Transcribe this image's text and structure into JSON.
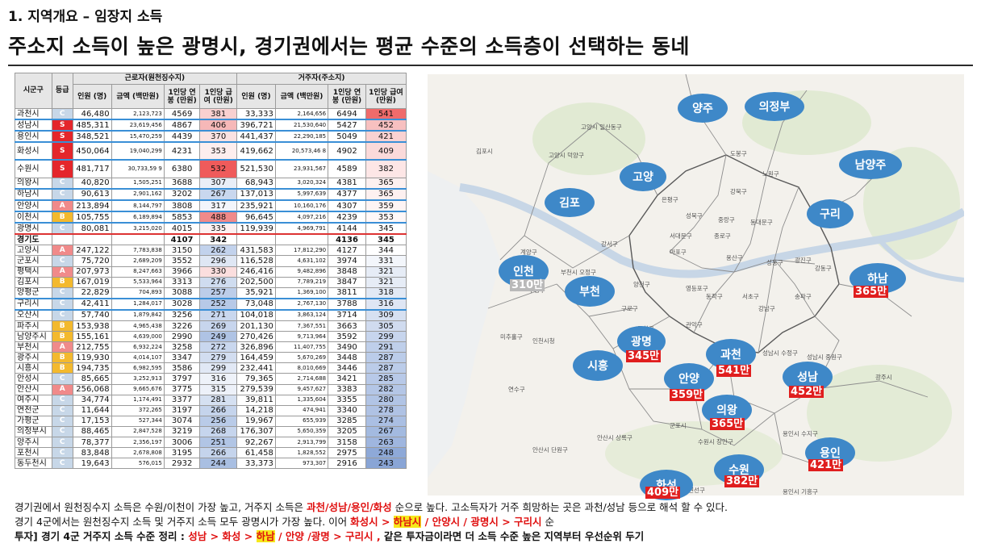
{
  "subtitle": "1. 지역개요 – 임장지 소득",
  "title": "주소지 소득이 높은 광명시, 경기권에서는 평균 수준의 소득층이 선택하는 동네",
  "colors": {
    "S": "#e4262b",
    "A": "#f08a8a",
    "B": "#f3b92e",
    "C": "#c7d7e8",
    "bubble": "#3e88c8",
    "tag": "#e01e1e"
  },
  "table": {
    "header": {
      "sigungu": "시군구",
      "grade": "등급",
      "group_work": "근로자(원천징수지)",
      "group_home": "거주자(주소지)",
      "cols": [
        "인원 (명)",
        "금액 (백만원)",
        "1인당 연봉 (만원)",
        "1인당 급여 (만원)",
        "인원 (명)",
        "금액 (백만원)",
        "1인당 연봉 (만원)",
        "1인당 급여 (만원)"
      ]
    },
    "rows": [
      {
        "name": "과천시",
        "grade": "C",
        "wp": "46,480",
        "wa": "2,123,723",
        "ws": "4569",
        "wm": "381",
        "hp": "33,333",
        "ha": "2,164,656",
        "hs": "6494",
        "hm": "541",
        "wmc": "#f9d0d0",
        "hmc": "#ef6b6b"
      },
      {
        "name": "성남시",
        "grade": "S",
        "wp": "485,311",
        "wa": "23,619,456",
        "ws": "4867",
        "wm": "406",
        "hp": "396,721",
        "ha": "21,530,640",
        "hs": "5427",
        "hm": "452",
        "wmc": "#f6b8b8",
        "hmc": "#f7c0c0",
        "hl": "blue"
      },
      {
        "name": "용인시",
        "grade": "S",
        "wp": "348,521",
        "wa": "15,470,259",
        "ws": "4439",
        "wm": "370",
        "hp": "441,437",
        "ha": "22,290,185",
        "hs": "5049",
        "hm": "421",
        "wmc": "#fbe2e2",
        "hmc": "#fad2d2"
      },
      {
        "name": "화성시",
        "grade": "S",
        "wp": "450,064",
        "wa": "19,040,299",
        "ws": "4231",
        "wm": "353",
        "hp": "419,662",
        "ha": "20,573,46 8",
        "hs": "4902",
        "hm": "409",
        "wmc": "#fdeeee",
        "hmc": "#fbdada",
        "hl": "blue",
        "tall": true
      },
      {
        "name": "수원시",
        "grade": "S",
        "wp": "481,717",
        "wa": "30,733,59 9",
        "ws": "6380",
        "wm": "532",
        "hp": "521,530",
        "ha": "23,931,567",
        "hs": "4589",
        "hm": "382",
        "wmc": "#ef5b5b",
        "hmc": "#fde6e6",
        "tall": true
      },
      {
        "name": "의왕시",
        "grade": "C",
        "wp": "40,820",
        "wa": "1,505,251",
        "ws": "3688",
        "wm": "307",
        "hp": "68,943",
        "ha": "3,020,324",
        "hs": "4381",
        "hm": "365",
        "wmc": "#e9eef7",
        "hmc": "#fdf0f0"
      },
      {
        "name": "하남시",
        "grade": "C",
        "wp": "90,613",
        "wa": "2,901,162",
        "ws": "3202",
        "wm": "267",
        "hp": "137,013",
        "ha": "5,997,639",
        "hs": "4377",
        "hm": "365",
        "wmc": "#c9d7ee",
        "hmc": "#fdf0f0",
        "hl": "blue"
      },
      {
        "name": "안양시",
        "grade": "A",
        "wp": "213,894",
        "wa": "8,144,797",
        "ws": "3808",
        "wm": "317",
        "hp": "235,921",
        "ha": "10,160,176",
        "hs": "4307",
        "hm": "359",
        "wmc": "#f3f5fb",
        "hmc": "#fef4f4",
        "hl": "blue"
      },
      {
        "name": "이천시",
        "grade": "B",
        "wp": "105,755",
        "wa": "6,189,894",
        "ws": "5853",
        "wm": "488",
        "hp": "96,645",
        "ha": "4,097,216",
        "hs": "4239",
        "hm": "353",
        "wmc": "#f08a8a",
        "hmc": "#fff8f8",
        "hl": "blue"
      },
      {
        "name": "광명시",
        "grade": "C",
        "wp": "80,081",
        "wa": "3,215,020",
        "ws": "4015",
        "wm": "335",
        "hp": "119,939",
        "ha": "4,969,791",
        "hs": "4144",
        "hm": "345",
        "wmc": "#fdf0f0",
        "hmc": "#ffffff",
        "hl": "red"
      },
      {
        "name": "경기도",
        "grade": "",
        "wp": "",
        "wa": "",
        "ws": "4107",
        "wm": "342",
        "hp": "",
        "ha": "",
        "hs": "4136",
        "hm": "345",
        "sum": true
      },
      {
        "name": "고양시",
        "grade": "A",
        "wp": "247,122",
        "wa": "7,783,838",
        "ws": "3150",
        "wm": "262",
        "hp": "431,583",
        "ha": "17,812,290",
        "hs": "4127",
        "hm": "344",
        "wmc": "#c2d2ec",
        "hmc": "#ffffff"
      },
      {
        "name": "군포시",
        "grade": "C",
        "wp": "75,720",
        "wa": "2,689,209",
        "ws": "3552",
        "wm": "296",
        "hp": "116,528",
        "ha": "4,631,102",
        "hs": "3974",
        "hm": "331",
        "wmc": "#dfe7f4",
        "hmc": "#f3f6fb"
      },
      {
        "name": "평택시",
        "grade": "A",
        "wp": "207,973",
        "wa": "8,247,663",
        "ws": "3966",
        "wm": "330",
        "hp": "246,416",
        "ha": "9,482,896",
        "hs": "3848",
        "hm": "321",
        "wmc": "#fbdede",
        "hmc": "#e6ecf6"
      },
      {
        "name": "김포시",
        "grade": "B",
        "wp": "167,019",
        "wa": "5,533,964",
        "ws": "3313",
        "wm": "276",
        "hp": "202,500",
        "ha": "7,789,219",
        "hs": "3847",
        "hm": "321",
        "wmc": "#cfdcef",
        "hmc": "#e6ecf6"
      },
      {
        "name": "양평군",
        "grade": "C",
        "wp": "22,829",
        "wa": "704,893",
        "ws": "3088",
        "wm": "257",
        "hp": "35,921",
        "ha": "1,369,100",
        "hs": "3811",
        "hm": "318",
        "wmc": "#bccde9",
        "hmc": "#e2e9f5"
      },
      {
        "name": "구리시",
        "grade": "C",
        "wp": "42,411",
        "wa": "1,284,017",
        "ws": "3028",
        "wm": "252",
        "hp": "73,048",
        "ha": "2,767,130",
        "hs": "3788",
        "hm": "316",
        "wmc": "#b7c9e7",
        "hmc": "#dfe6f4",
        "hl": "blue"
      },
      {
        "name": "오산시",
        "grade": "C",
        "wp": "57,740",
        "wa": "1,879,842",
        "ws": "3256",
        "wm": "271",
        "hp": "104,018",
        "ha": "3,863,124",
        "hs": "3714",
        "hm": "309",
        "wmc": "#c9d7ee",
        "hmc": "#d6e0f1"
      },
      {
        "name": "파주시",
        "grade": "B",
        "wp": "153,938",
        "wa": "4,965,438",
        "ws": "3226",
        "wm": "269",
        "hp": "201,130",
        "ha": "7,367,551",
        "hs": "3663",
        "hm": "305",
        "wmc": "#c7d5ed",
        "hmc": "#d0dbef"
      },
      {
        "name": "남양주시",
        "grade": "B",
        "wp": "155,161",
        "wa": "4,639,000",
        "ws": "2990",
        "wm": "249",
        "hp": "270,426",
        "ha": "9,713,964",
        "hs": "3592",
        "hm": "299",
        "wmc": "#afc3e4",
        "hmc": "#c7d5ed"
      },
      {
        "name": "부천시",
        "grade": "A",
        "wp": "212,755",
        "wa": "6,932,224",
        "ws": "3258",
        "wm": "272",
        "hp": "326,896",
        "ha": "11,407,755",
        "hs": "3490",
        "hm": "291",
        "wmc": "#c9d7ee",
        "hmc": "#bfcfea"
      },
      {
        "name": "광주시",
        "grade": "B",
        "wp": "119,930",
        "wa": "4,014,107",
        "ws": "3347",
        "wm": "279",
        "hp": "164,459",
        "ha": "5,670,269",
        "hs": "3448",
        "hm": "287",
        "wmc": "#d2ddf0",
        "hmc": "#bbcce9"
      },
      {
        "name": "시흥시",
        "grade": "B",
        "wp": "194,735",
        "wa": "6,982,595",
        "ws": "3586",
        "wm": "299",
        "hp": "232,441",
        "ha": "8,010,669",
        "hs": "3446",
        "hm": "287",
        "wmc": "#e1e8f5",
        "hmc": "#bbcce9"
      },
      {
        "name": "안성시",
        "grade": "C",
        "wp": "85,665",
        "wa": "3,252,913",
        "ws": "3797",
        "wm": "316",
        "hp": "79,365",
        "ha": "2,714,688",
        "hs": "3421",
        "hm": "285",
        "wmc": "#eef2f9",
        "hmc": "#b8c9e8"
      },
      {
        "name": "안산시",
        "grade": "A",
        "wp": "256,068",
        "wa": "9,665,676",
        "ws": "3775",
        "wm": "315",
        "hp": "279,539",
        "ha": "9,457,627",
        "hs": "3383",
        "hm": "282",
        "wmc": "#edf1f9",
        "hmc": "#b4c6e6"
      },
      {
        "name": "여주시",
        "grade": "C",
        "wp": "34,774",
        "wa": "1,174,491",
        "ws": "3377",
        "wm": "281",
        "hp": "39,811",
        "ha": "1,335,604",
        "hs": "3355",
        "hm": "280",
        "wmc": "#d5e0f1",
        "hmc": "#b1c4e5"
      },
      {
        "name": "연천군",
        "grade": "C",
        "wp": "11,644",
        "wa": "372,265",
        "ws": "3197",
        "wm": "266",
        "hp": "14,218",
        "ha": "474,941",
        "hs": "3340",
        "hm": "278",
        "wmc": "#c5d4ec",
        "hmc": "#afc2e4"
      },
      {
        "name": "가평군",
        "grade": "C",
        "wp": "17,153",
        "wa": "527,344",
        "ws": "3074",
        "wm": "256",
        "hp": "19,967",
        "ha": "655,939",
        "hs": "3285",
        "hm": "274",
        "wmc": "#b9cbe8",
        "hmc": "#aabfe3"
      },
      {
        "name": "의정부시",
        "grade": "C",
        "wp": "88,465",
        "wa": "2,847,528",
        "ws": "3219",
        "wm": "268",
        "hp": "176,307",
        "ha": "5,650,359",
        "hs": "3205",
        "hm": "267",
        "wmc": "#c6d5ed",
        "hmc": "#a3bae0"
      },
      {
        "name": "양주시",
        "grade": "C",
        "wp": "78,377",
        "wa": "2,356,197",
        "ws": "3006",
        "wm": "251",
        "hp": "92,267",
        "ha": "2,913,799",
        "hs": "3158",
        "hm": "263",
        "wmc": "#b1c5e5",
        "hmc": "#9fb6df"
      },
      {
        "name": "포천시",
        "grade": "C",
        "wp": "83,848",
        "wa": "2,678,808",
        "ws": "3195",
        "wm": "266",
        "hp": "61,458",
        "ha": "1,828,552",
        "hs": "2975",
        "hm": "248",
        "wmc": "#c5d4ec",
        "hmc": "#8ea9d8"
      },
      {
        "name": "동두천시",
        "grade": "C",
        "wp": "19,643",
        "wa": "576,015",
        "ws": "2932",
        "wm": "244",
        "hp": "33,373",
        "ha": "973,307",
        "hs": "2916",
        "hm": "243",
        "wmc": "#a9bfe2",
        "hmc": "#89a5d6"
      }
    ]
  },
  "map": {
    "bubbles": [
      {
        "id": "yangju",
        "label": "양주"
      },
      {
        "id": "uijeongbu",
        "label": "의정부"
      },
      {
        "id": "namyangju",
        "label": "남양주"
      },
      {
        "id": "goyang",
        "label": "고양"
      },
      {
        "id": "gimpo",
        "label": "김포"
      },
      {
        "id": "guri",
        "label": "구리"
      },
      {
        "id": "incheon",
        "label": "인천"
      },
      {
        "id": "bucheon",
        "label": "부천"
      },
      {
        "id": "hanam",
        "label": "하남"
      },
      {
        "id": "gwangmyeong",
        "label": "광명"
      },
      {
        "id": "gwacheon",
        "label": "과천"
      },
      {
        "id": "siheung",
        "label": "시흥"
      },
      {
        "id": "anyang",
        "label": "안양"
      },
      {
        "id": "seongnam",
        "label": "성남"
      },
      {
        "id": "uiwang",
        "label": "의왕"
      },
      {
        "id": "yongin",
        "label": "용인"
      },
      {
        "id": "suwon",
        "label": "수원"
      },
      {
        "id": "hwaseong",
        "label": "화성"
      }
    ],
    "tags": [
      {
        "id": "incheon",
        "text": "310만",
        "gray": true
      },
      {
        "id": "hanam",
        "text": "365만"
      },
      {
        "id": "gwangmyeong",
        "text": "345만"
      },
      {
        "id": "gwacheon",
        "text": "541만"
      },
      {
        "id": "anyang",
        "text": "359만"
      },
      {
        "id": "seongnam",
        "text": "452만"
      },
      {
        "id": "uiwang",
        "text": "365만"
      },
      {
        "id": "yongin",
        "text": "421만"
      },
      {
        "id": "suwon",
        "text": "382만"
      },
      {
        "id": "hwaseong",
        "text": "409만"
      }
    ],
    "place_labels": [
      "고양시 일산동구",
      "고양시 덕양구",
      "김포시",
      "도봉구",
      "노원구",
      "강북구",
      "은평구",
      "성북구",
      "중랑구",
      "동대문구",
      "종로구",
      "서대문구",
      "강서구",
      "마포구",
      "용산구",
      "성동구",
      "광진구",
      "강동구",
      "양천구",
      "영등포구",
      "동작구",
      "서초구",
      "강남구",
      "송파구",
      "부천시 오정구",
      "부평구",
      "계양구",
      "구로구",
      "금천구",
      "관악구",
      "미추홀구",
      "인천시청",
      "연수구",
      "안산시 단원구",
      "안산시 상록구",
      "수원시 장안구",
      "수원시 권선구",
      "성남시 수정구",
      "성남시 중원구",
      "군포시",
      "광주시",
      "용인시 수지구",
      "용인시 기흥구"
    ]
  },
  "footer": {
    "l1a": "경기권에서 원천징수지 소득은 수원/이천이 가장 높고, 거주지 소득은 ",
    "l1b": "과천/성남/용인/화성",
    "l1c": " 순으로 높다. 고소득자가 거주 희망하는 곳은 과천/성남 등으로 해석 할 수 있다.",
    "l2a": "경기 4군에서는 원천징수지 소득 및 거주지 소득 모두 광명시가 가장 높다. 이어 ",
    "l2b": "화성시 > ",
    "l2c": "하남시",
    "l2d": " / 안양시 / 광명시 > 구리시",
    "l2e": " 순",
    "l3a": "투자] 경기 4군 거주지 소득 수준 정리 : ",
    "l3b": "성남 > 화성 > ",
    "l3c": "하남",
    "l3d": " / 안양 /광명 > 구리시 ,",
    "l3e": " 같은 투자금이라면 더 소득 수준 높은 지역부터 우선순위 두기"
  }
}
